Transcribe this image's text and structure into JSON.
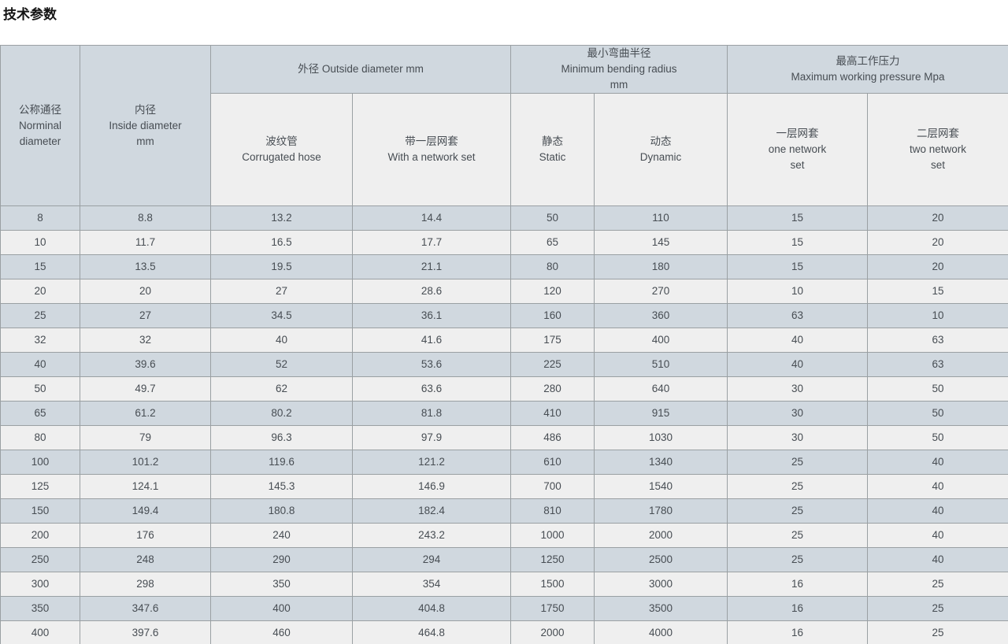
{
  "page": {
    "title": "技术参数"
  },
  "theme": {
    "row_odd_bg": "#d0d8df",
    "row_even_bg": "#efefef",
    "header_blue_bg": "#d0d8df",
    "subheader_bg": "#efefef",
    "border_color": "#9aa0a3",
    "text_color": "#474d53",
    "title_color": "#141414"
  },
  "table": {
    "headers": {
      "nominal_diameter": "公称通径\nNorminal\ndiameter",
      "inside_diameter": "内径\nInside diameter\nmm",
      "outside_diameter_group": "外径 Outside diameter mm",
      "corrugated_hose": "波纹管\nCorrugated hose",
      "with_network_set": "带一层网套\nWith a network set",
      "bending_radius_group": "最小弯曲半径\nMinimum bending radius\nmm",
      "static": "静态\nStatic",
      "dynamic": "动态\nDynamic",
      "pressure_group": "最高工作压力\nMaximum working pressure Mpa",
      "one_network_set": "一层网套\none network\nset",
      "two_network_set": "二层网套\ntwo network\nset"
    },
    "rows": [
      [
        "8",
        "8.8",
        "13.2",
        "14.4",
        "50",
        "110",
        "15",
        "20"
      ],
      [
        "10",
        "11.7",
        "16.5",
        "17.7",
        "65",
        "145",
        "15",
        "20"
      ],
      [
        "15",
        "13.5",
        "19.5",
        "21.1",
        "80",
        "180",
        "15",
        "20"
      ],
      [
        "20",
        "20",
        "27",
        "28.6",
        "120",
        "270",
        "10",
        "15"
      ],
      [
        "25",
        "27",
        "34.5",
        "36.1",
        "160",
        "360",
        "63",
        "10"
      ],
      [
        "32",
        "32",
        "40",
        "41.6",
        "175",
        "400",
        "40",
        "63"
      ],
      [
        "40",
        "39.6",
        "52",
        "53.6",
        "225",
        "510",
        "40",
        "63"
      ],
      [
        "50",
        "49.7",
        "62",
        "63.6",
        "280",
        "640",
        "30",
        "50"
      ],
      [
        "65",
        "61.2",
        "80.2",
        "81.8",
        "410",
        "915",
        "30",
        "50"
      ],
      [
        "80",
        "79",
        "96.3",
        "97.9",
        "486",
        "1030",
        "30",
        "50"
      ],
      [
        "100",
        "101.2",
        "119.6",
        "121.2",
        "610",
        "1340",
        "25",
        "40"
      ],
      [
        "125",
        "124.1",
        "145.3",
        "146.9",
        "700",
        "1540",
        "25",
        "40"
      ],
      [
        "150",
        "149.4",
        "180.8",
        "182.4",
        "810",
        "1780",
        "25",
        "40"
      ],
      [
        "200",
        "176",
        "240",
        "243.2",
        "1000",
        "2000",
        "25",
        "40"
      ],
      [
        "250",
        "248",
        "290",
        "294",
        "1250",
        "2500",
        "25",
        "40"
      ],
      [
        "300",
        "298",
        "350",
        "354",
        "1500",
        "3000",
        "16",
        "25"
      ],
      [
        "350",
        "347.6",
        "400",
        "404.8",
        "1750",
        "3500",
        "16",
        "25"
      ],
      [
        "400",
        "397.6",
        "460",
        "464.8",
        "2000",
        "4000",
        "16",
        "25"
      ]
    ]
  }
}
